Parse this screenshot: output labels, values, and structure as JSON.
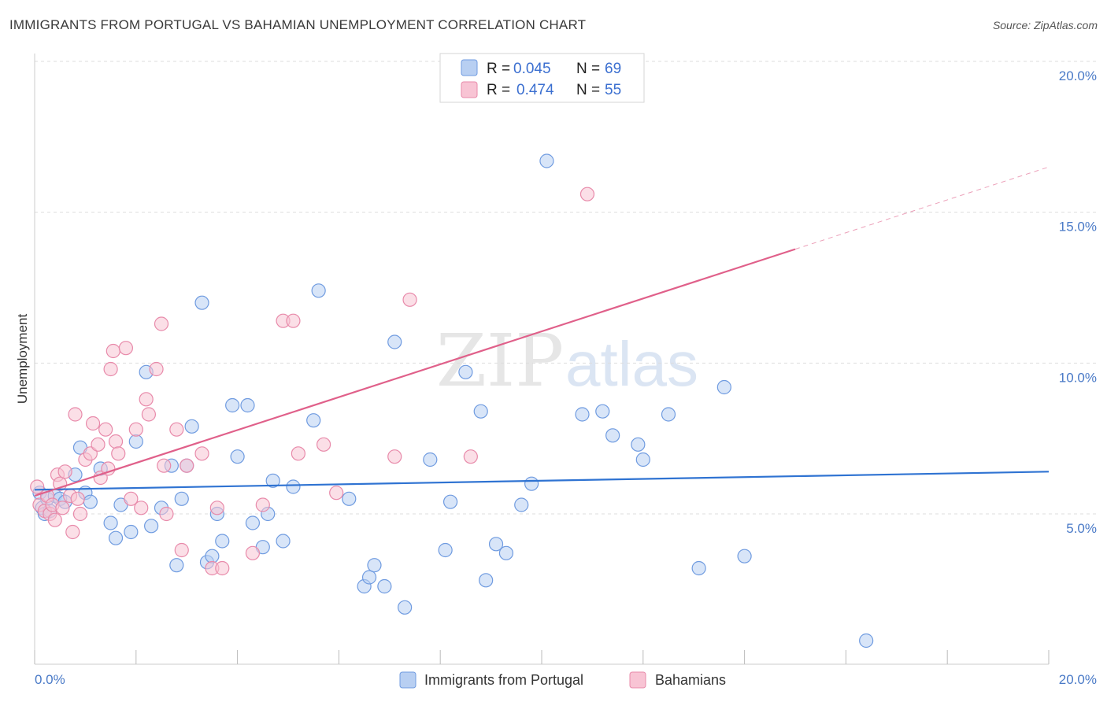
{
  "title": "IMMIGRANTS FROM PORTUGAL VS BAHAMIAN UNEMPLOYMENT CORRELATION CHART",
  "source": "Source: ZipAtlas.com",
  "watermark": {
    "zip": "ZIP",
    "atlas": "atlas"
  },
  "legend": {
    "r_label": "R =",
    "n_label": "N =",
    "rows": [
      {
        "r": "0.045",
        "n": "69"
      },
      {
        "r": "0.474",
        "n": "55"
      }
    ]
  },
  "bottom_legend": [
    "Immigrants from Portugal",
    "Bahamians"
  ],
  "colors": {
    "blue_fill": "#b8cff2",
    "blue_stroke": "#6f9be0",
    "blue_line": "#2f73d2",
    "pink_fill": "#f8c4d4",
    "pink_stroke": "#e88aaa",
    "pink_line": "#e0608a",
    "tick_text": "#4a7ac7",
    "grid": "#dddddd"
  },
  "chart_data": {
    "type": "scatter",
    "title": "IMMIGRANTS FROM PORTUGAL VS BAHAMIAN UNEMPLOYMENT CORRELATION CHART",
    "xlabel": "",
    "ylabel": "Unemployment",
    "xlim": [
      0,
      20
    ],
    "ylim": [
      0,
      20.5
    ],
    "x_tick_labels": [
      "0.0%",
      "20.0%"
    ],
    "y_ticks": [
      5,
      10,
      15,
      20
    ],
    "y_tick_labels": [
      "5.0%",
      "10.0%",
      "15.0%",
      "20.0%"
    ],
    "grid": true,
    "legend_position": "top-center",
    "series": [
      {
        "name": "Immigrants from Portugal",
        "color": "#6f9be0",
        "r": 0.045,
        "n": 69,
        "trend": {
          "x0": 0,
          "y0": 5.8,
          "x1": 20,
          "y1": 6.4,
          "dashed_from": null
        },
        "points": [
          [
            0.1,
            5.7
          ],
          [
            0.15,
            5.2
          ],
          [
            0.2,
            5.0
          ],
          [
            0.25,
            5.5
          ],
          [
            0.3,
            5.1
          ],
          [
            0.4,
            5.6
          ],
          [
            0.5,
            5.5
          ],
          [
            0.6,
            5.4
          ],
          [
            0.8,
            6.3
          ],
          [
            0.9,
            7.2
          ],
          [
            1.0,
            5.7
          ],
          [
            1.1,
            5.4
          ],
          [
            1.3,
            6.5
          ],
          [
            1.5,
            4.7
          ],
          [
            1.6,
            4.2
          ],
          [
            1.7,
            5.3
          ],
          [
            1.9,
            4.4
          ],
          [
            2.0,
            7.4
          ],
          [
            2.2,
            9.7
          ],
          [
            2.3,
            4.6
          ],
          [
            2.5,
            5.2
          ],
          [
            2.7,
            6.6
          ],
          [
            2.8,
            3.3
          ],
          [
            2.9,
            5.5
          ],
          [
            3.0,
            6.6
          ],
          [
            3.1,
            7.9
          ],
          [
            3.3,
            12.0
          ],
          [
            3.4,
            3.4
          ],
          [
            3.5,
            3.6
          ],
          [
            3.6,
            5.0
          ],
          [
            3.7,
            4.1
          ],
          [
            3.9,
            8.6
          ],
          [
            4.0,
            6.9
          ],
          [
            4.2,
            8.6
          ],
          [
            4.3,
            4.7
          ],
          [
            4.5,
            3.9
          ],
          [
            4.6,
            5.0
          ],
          [
            4.7,
            6.1
          ],
          [
            4.9,
            4.1
          ],
          [
            5.1,
            5.9
          ],
          [
            5.5,
            8.1
          ],
          [
            5.6,
            12.4
          ],
          [
            6.2,
            5.5
          ],
          [
            6.5,
            2.6
          ],
          [
            6.6,
            2.9
          ],
          [
            6.7,
            3.3
          ],
          [
            6.9,
            2.6
          ],
          [
            7.1,
            10.7
          ],
          [
            7.3,
            1.9
          ],
          [
            7.8,
            6.8
          ],
          [
            8.1,
            3.8
          ],
          [
            8.2,
            5.4
          ],
          [
            8.5,
            9.7
          ],
          [
            8.8,
            8.4
          ],
          [
            8.9,
            2.8
          ],
          [
            9.1,
            4.0
          ],
          [
            9.3,
            3.7
          ],
          [
            9.6,
            5.3
          ],
          [
            9.8,
            6.0
          ],
          [
            10.1,
            16.7
          ],
          [
            10.8,
            8.3
          ],
          [
            11.2,
            8.4
          ],
          [
            11.4,
            7.6
          ],
          [
            11.9,
            7.3
          ],
          [
            12.0,
            6.8
          ],
          [
            12.5,
            8.3
          ],
          [
            13.1,
            3.2
          ],
          [
            13.6,
            9.2
          ],
          [
            14.0,
            3.6
          ],
          [
            16.4,
            0.8
          ]
        ]
      },
      {
        "name": "Bahamians",
        "color": "#e88aaa",
        "r": 0.474,
        "n": 55,
        "trend": {
          "x0": 0,
          "y0": 5.6,
          "x1": 20,
          "y1": 16.5,
          "dashed_from": 15
        },
        "points": [
          [
            0.05,
            5.9
          ],
          [
            0.1,
            5.3
          ],
          [
            0.2,
            5.1
          ],
          [
            0.25,
            5.6
          ],
          [
            0.3,
            5.0
          ],
          [
            0.35,
            5.3
          ],
          [
            0.4,
            4.8
          ],
          [
            0.45,
            6.3
          ],
          [
            0.5,
            6.0
          ],
          [
            0.55,
            5.2
          ],
          [
            0.6,
            6.4
          ],
          [
            0.7,
            5.6
          ],
          [
            0.75,
            4.4
          ],
          [
            0.8,
            8.3
          ],
          [
            0.85,
            5.5
          ],
          [
            0.9,
            5.0
          ],
          [
            1.0,
            6.8
          ],
          [
            1.1,
            7.0
          ],
          [
            1.15,
            8.0
          ],
          [
            1.25,
            7.3
          ],
          [
            1.3,
            6.2
          ],
          [
            1.4,
            7.8
          ],
          [
            1.45,
            6.5
          ],
          [
            1.5,
            9.8
          ],
          [
            1.55,
            10.4
          ],
          [
            1.6,
            7.4
          ],
          [
            1.65,
            7.0
          ],
          [
            1.8,
            10.5
          ],
          [
            1.9,
            5.5
          ],
          [
            2.0,
            7.8
          ],
          [
            2.1,
            5.2
          ],
          [
            2.2,
            8.8
          ],
          [
            2.25,
            8.3
          ],
          [
            2.4,
            9.8
          ],
          [
            2.5,
            11.3
          ],
          [
            2.55,
            6.6
          ],
          [
            2.6,
            5.0
          ],
          [
            2.8,
            7.8
          ],
          [
            2.9,
            3.8
          ],
          [
            3.0,
            6.6
          ],
          [
            3.3,
            7.0
          ],
          [
            3.5,
            3.2
          ],
          [
            3.6,
            5.2
          ],
          [
            3.7,
            3.2
          ],
          [
            4.3,
            3.7
          ],
          [
            4.5,
            5.3
          ],
          [
            4.9,
            11.4
          ],
          [
            5.1,
            11.4
          ],
          [
            5.2,
            7.0
          ],
          [
            5.7,
            7.3
          ],
          [
            5.95,
            5.7
          ],
          [
            7.1,
            6.9
          ],
          [
            7.4,
            12.1
          ],
          [
            8.6,
            6.9
          ],
          [
            10.9,
            15.6
          ]
        ]
      }
    ]
  }
}
